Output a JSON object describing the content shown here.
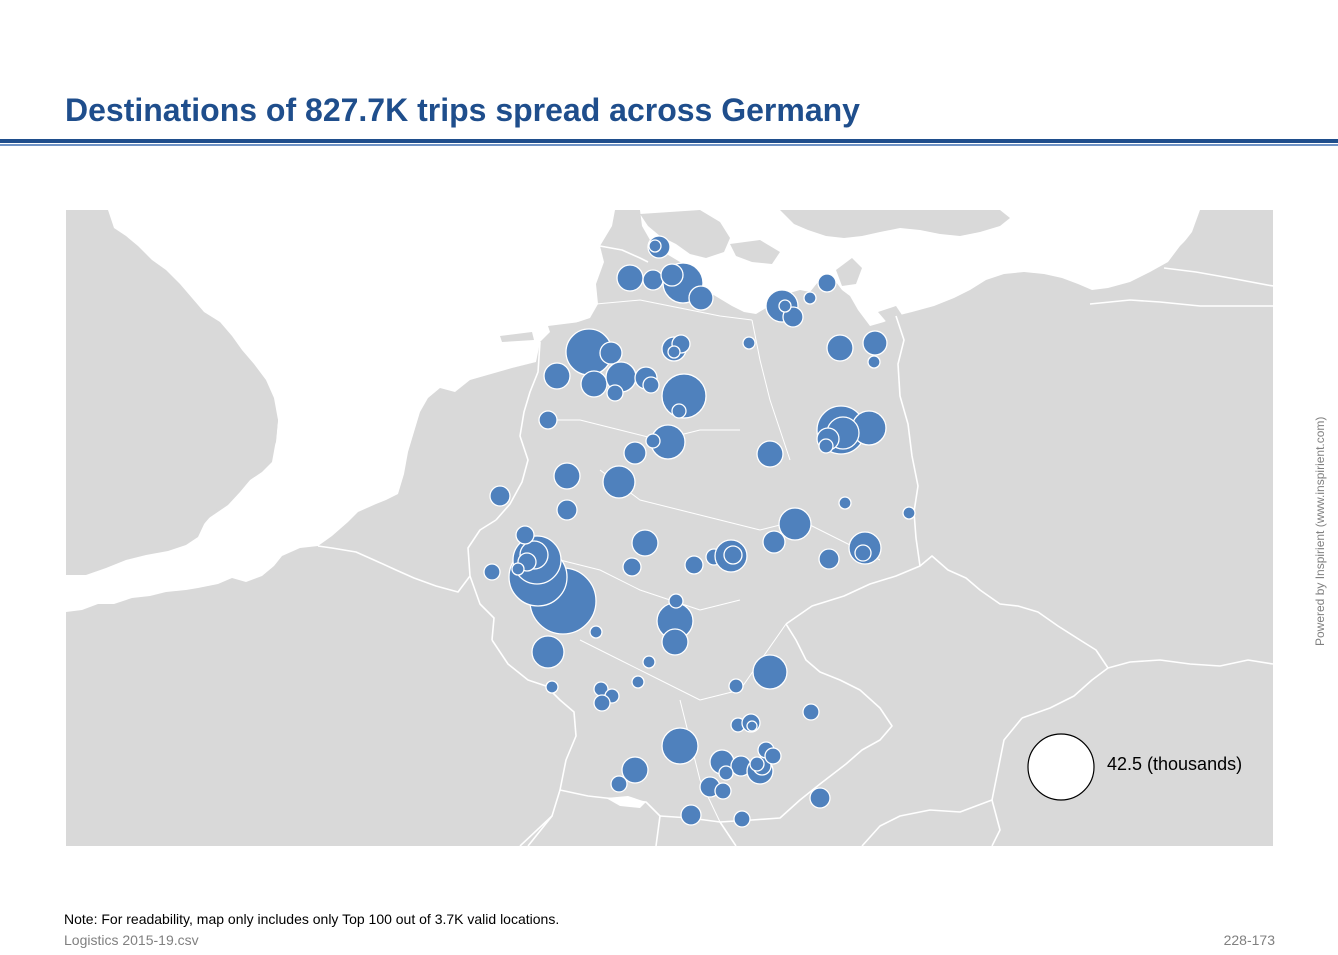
{
  "title": "Destinations of 827.7K trips spread across Germany",
  "note": "Note: For readability, map only includes only Top 100 out of 3.7K valid locations.",
  "source": "Logistics 2015-19.csv",
  "slide_id": "228-173",
  "powered_by": "Powered by Inspirient (www.inspirient.com)",
  "legend": {
    "label": "42.5 (thousands)",
    "value_thousands": 42.5
  },
  "colors": {
    "title": "#1f4e8c",
    "bubble": "#4f81bd",
    "land": "#d9d9d9",
    "water": "#ffffff",
    "border": "#ffffff"
  },
  "map_data": {
    "type": "bubble-map",
    "region": "Germany",
    "bubble_fill": "#4f81bd",
    "legend_reference_thousands": 42.5
  }
}
